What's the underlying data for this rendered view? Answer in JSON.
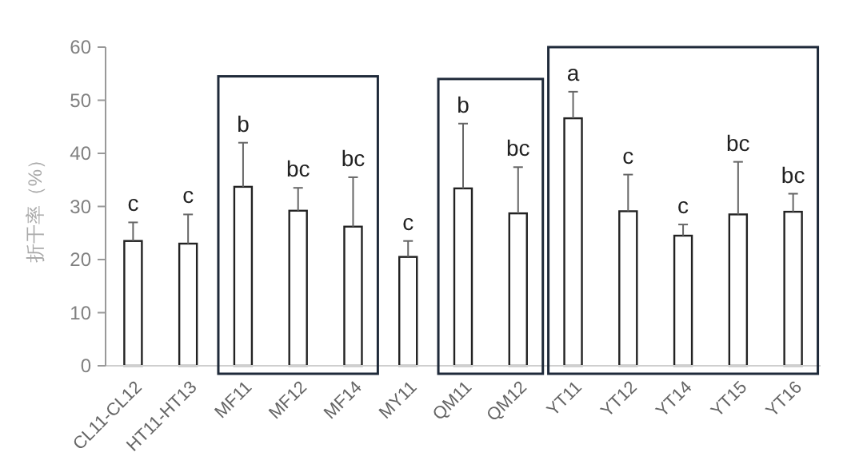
{
  "chart_data": {
    "type": "bar",
    "ylabel": "折干率（%）",
    "categories": [
      "CL11-CL12",
      "HT11-HT13",
      "MF11",
      "MF12",
      "MF14",
      "MY11",
      "QM11",
      "QM12",
      "YT11",
      "YT12",
      "YT14",
      "YT15",
      "YT16"
    ],
    "values": [
      23.5,
      23,
      33.7,
      29.2,
      26.2,
      20.5,
      33.4,
      28.7,
      46.6,
      29.1,
      24.5,
      28.5,
      29
    ],
    "errors": [
      [
        23.5,
        27
      ],
      [
        23,
        28.5
      ],
      [
        33.7,
        42
      ],
      [
        29.2,
        33.5
      ],
      [
        26.2,
        35.5
      ],
      [
        20.5,
        23.5
      ],
      [
        33.4,
        45.6
      ],
      [
        28.7,
        37.4
      ],
      [
        46.6,
        51.6
      ],
      [
        29.1,
        36
      ],
      [
        24.5,
        26.6
      ],
      [
        28.5,
        38.4
      ],
      [
        29,
        32.4
      ]
    ],
    "color": "#ffffff",
    "ylim": [
      0,
      60
    ],
    "yticks": [
      0,
      10,
      20,
      30,
      40,
      50,
      60
    ],
    "grid": false,
    "annotations": [
      {
        "text": "c",
        "x": "CL11-CL12",
        "y": 27
      },
      {
        "text": "c",
        "x": "HT11-HT13",
        "y": 28.5
      },
      {
        "text": "b",
        "x": "MF11",
        "y": 42
      },
      {
        "text": "bc",
        "x": "MF12",
        "y": 33.5
      },
      {
        "text": "bc",
        "x": "MF14",
        "y": 35.5
      },
      {
        "text": "c",
        "x": "MY11",
        "y": 23.5
      },
      {
        "text": "b",
        "x": "QM11",
        "y": 45.6
      },
      {
        "text": "bc",
        "x": "QM12",
        "y": 37.4
      },
      {
        "text": "a",
        "x": "YT11",
        "y": 51.6
      },
      {
        "text": "c",
        "x": "YT12",
        "y": 36
      },
      {
        "text": "c",
        "x": "YT14",
        "y": 26.6
      },
      {
        "text": "bc",
        "x": "YT15",
        "y": 38.4
      },
      {
        "text": "bc",
        "x": "YT16",
        "y": 32.4
      }
    ]
  }
}
